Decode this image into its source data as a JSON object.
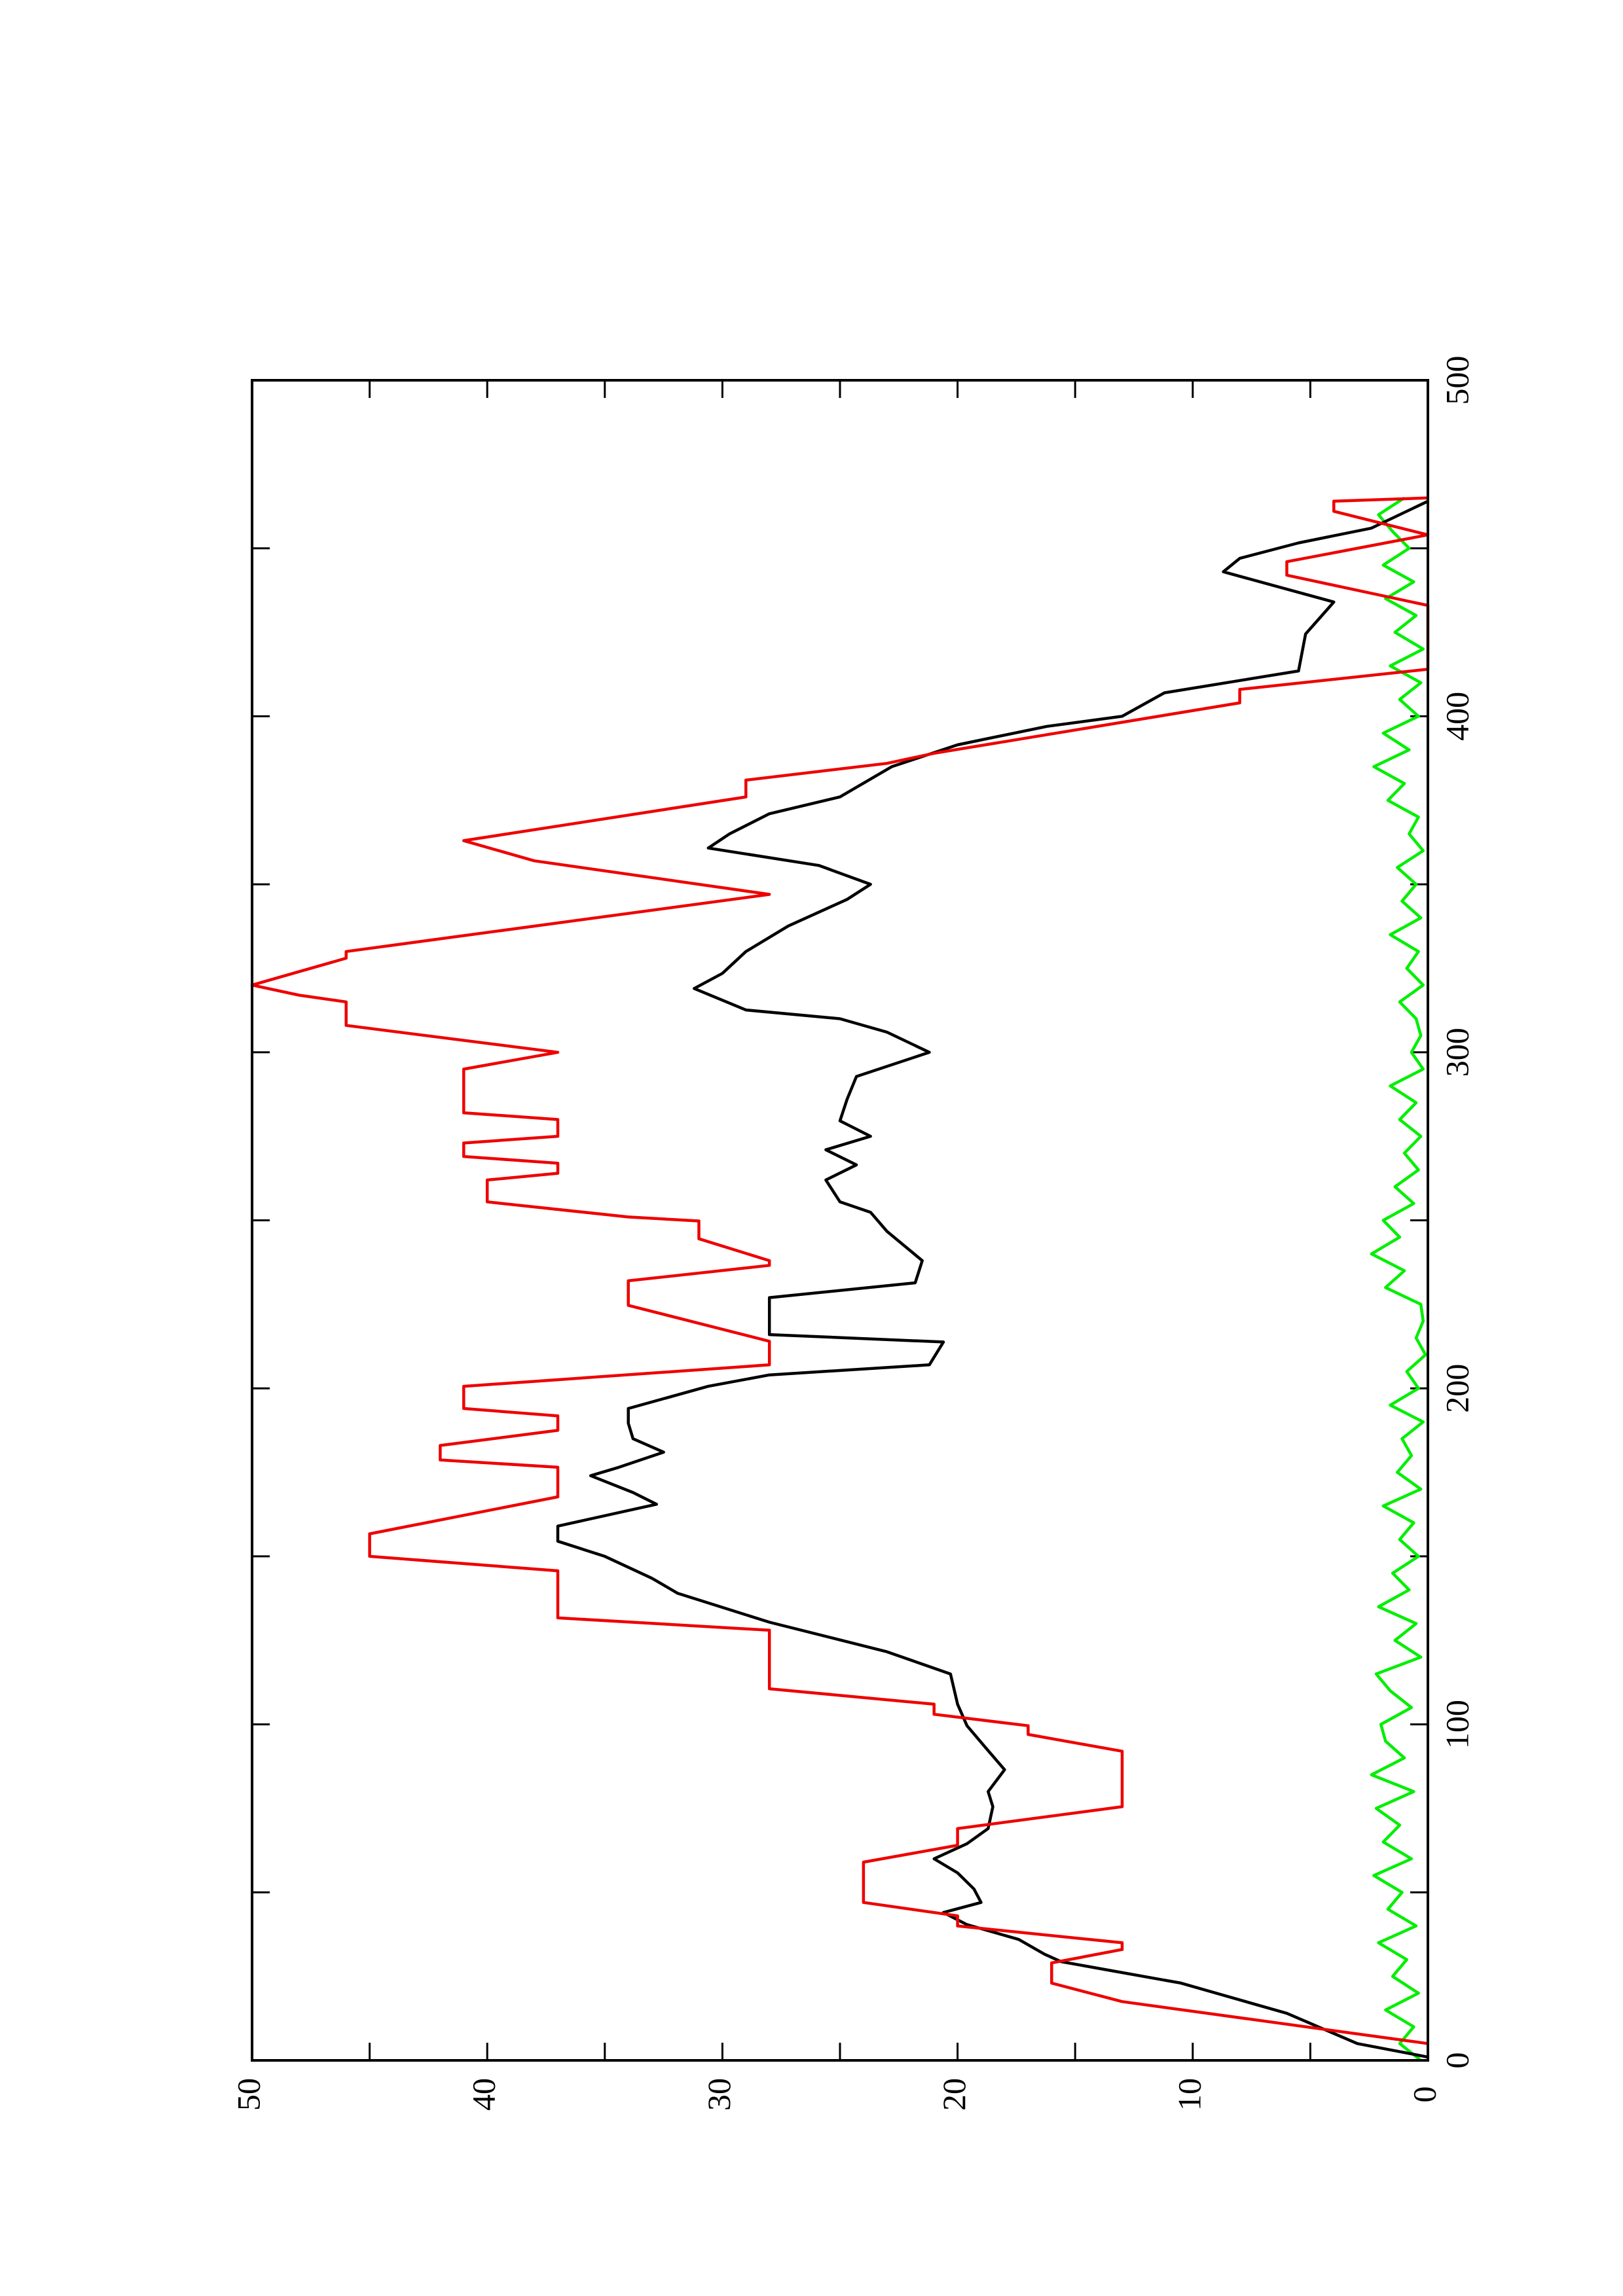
{
  "chart_data": {
    "type": "line",
    "xlim": [
      0,
      500
    ],
    "xticks": [
      0,
      100,
      200,
      300,
      400,
      500
    ],
    "xminor_ticks": [
      50,
      150,
      250,
      350,
      450
    ],
    "ylim": [
      0,
      50
    ],
    "yticks": [
      0,
      10,
      20,
      30,
      40,
      50
    ],
    "yminor_ticks": [
      5,
      15,
      25,
      35,
      45
    ],
    "series": [
      {
        "color": "#00ee00",
        "x": [
          0,
          5,
          10,
          15,
          20,
          25,
          30,
          35,
          40,
          45,
          50,
          55,
          60,
          65,
          70,
          75,
          80,
          85,
          90,
          95,
          100,
          105,
          110,
          115,
          120,
          125,
          130,
          135,
          140,
          145,
          150,
          155,
          160,
          165,
          170,
          175,
          180,
          185,
          190,
          195,
          200,
          205,
          210,
          215,
          220,
          225,
          230,
          235,
          240,
          245,
          250,
          255,
          260,
          265,
          270,
          275,
          280,
          285,
          290,
          295,
          300,
          305,
          310,
          315,
          320,
          325,
          330,
          335,
          340,
          345,
          350,
          355,
          360,
          365,
          370,
          375,
          380,
          385,
          390,
          395,
          400,
          405,
          410,
          415,
          420,
          425,
          430,
          435,
          440,
          445,
          450,
          455,
          460,
          465
        ],
        "values": [
          0.3,
          1.2,
          0.6,
          1.8,
          0.4,
          1.5,
          0.9,
          2.1,
          0.5,
          1.7,
          1.1,
          2.3,
          0.7,
          1.9,
          1.2,
          2.2,
          0.6,
          2.4,
          1.0,
          1.8,
          2.0,
          0.7,
          1.6,
          2.2,
          0.3,
          1.4,
          0.5,
          2.1,
          0.8,
          1.5,
          0.4,
          1.2,
          0.6,
          1.9,
          0.3,
          1.3,
          0.7,
          1.1,
          0.2,
          1.6,
          0.4,
          0.9,
          0.1,
          0.5,
          0.2,
          0.3,
          1.8,
          1.0,
          2.4,
          1.2,
          1.9,
          0.6,
          1.4,
          0.4,
          1.0,
          0.3,
          1.2,
          0.5,
          1.6,
          0.2,
          0.7,
          0.3,
          0.5,
          1.2,
          0.2,
          0.9,
          0.4,
          1.6,
          0.3,
          1.1,
          0.5,
          1.3,
          0.2,
          0.8,
          0.4,
          1.7,
          1.0,
          2.3,
          0.8,
          1.9,
          0.4,
          1.2,
          0.3,
          1.6,
          0.2,
          1.4,
          0.5,
          1.8,
          0.6,
          1.9,
          0.8,
          1.5,
          2.1,
          1.0
        ]
      },
      {
        "color": "#000000",
        "x": [
          1,
          5,
          14,
          18,
          23,
          27,
          29.4,
          31.6,
          36,
          40.4,
          44,
          47,
          51,
          55.8,
          60,
          64.5,
          69,
          75.5,
          80,
          86.5,
          93,
          99.6,
          106,
          115,
          121.6,
          130.4,
          134.8,
          139,
          143.5,
          150,
          154.5,
          159,
          165.5,
          169,
          174,
          176.5,
          181,
          185,
          189.6,
          194,
          200.6,
          204,
          207,
          213.8,
          216,
          227,
          231.4,
          238,
          246.7,
          252.4,
          255.5,
          262,
          266.5,
          271,
          275,
          279.6,
          286,
          292.8,
          300,
          306,
          310,
          312.6,
          319,
          323.5,
          330,
          337.6,
          345.5,
          350,
          355.6,
          360.8,
          365,
          371,
          376,
          385,
          391.5,
          397,
          400,
          407,
          413.5,
          424.5,
          434,
          443,
          447,
          451.6,
          456,
          464
        ],
        "values": [
          0,
          3,
          6,
          8,
          10.5,
          13.7,
          15.6,
          16.3,
          17.4,
          19.6,
          20.6,
          19,
          19.3,
          20,
          21,
          19.6,
          18.7,
          18.5,
          18.7,
          18,
          18.8,
          19.6,
          20,
          20.3,
          23,
          28,
          30,
          31.9,
          33,
          35,
          37,
          37,
          32.8,
          33.8,
          35.6,
          34.4,
          32.5,
          33.8,
          34,
          34,
          30.6,
          28,
          21.2,
          20.6,
          28,
          28,
          21.8,
          21.5,
          23,
          23.7,
          25,
          25.6,
          24.3,
          25.6,
          23.7,
          25,
          24.7,
          24.3,
          21.2,
          23,
          25,
          29,
          31.2,
          30,
          29,
          27.2,
          24.7,
          23.7,
          25.9,
          30.6,
          29.7,
          28,
          25,
          22.8,
          20,
          16.2,
          13,
          11.2,
          5.5,
          5.2,
          4,
          8.7,
          8,
          5.5,
          2.4,
          0
        ]
      },
      {
        "color": "#ee0000",
        "x": [
          5,
          17.5,
          23,
          29,
          33,
          35,
          40,
          43,
          47,
          59,
          64,
          69,
          75.5,
          92,
          97,
          99.6,
          103,
          106,
          110.6,
          128,
          131.7,
          145.7,
          150,
          156.7,
          167.7,
          176.5,
          178.7,
          183,
          187.5,
          191.8,
          194,
          200.6,
          207,
          214,
          224.7,
          232,
          236.6,
          238,
          244.5,
          249.8,
          251,
          255.5,
          262,
          264,
          267,
          269,
          273,
          275,
          280,
          282,
          295,
          300,
          308,
          315,
          317,
          320,
          328,
          330,
          347,
          357,
          363,
          376,
          381,
          386,
          389,
          404,
          408,
          414,
          433,
          442,
          446,
          454,
          461,
          464,
          465
        ],
        "values": [
          0,
          13,
          16,
          16,
          13,
          13,
          20,
          20,
          24,
          24,
          20,
          20,
          13,
          13,
          17,
          17,
          21,
          21,
          28,
          28,
          37,
          37,
          45,
          45,
          37,
          37,
          42,
          42,
          37,
          37,
          41,
          41,
          28,
          28,
          34,
          34,
          28,
          28,
          31,
          31,
          34,
          40,
          40,
          37,
          37,
          41,
          41,
          37,
          37,
          41,
          41,
          37,
          46,
          46,
          48,
          50,
          46,
          46,
          28,
          38,
          41,
          29,
          29,
          23,
          21,
          8,
          8,
          0,
          0,
          6,
          6,
          0,
          4,
          4,
          0
        ]
      }
    ]
  }
}
